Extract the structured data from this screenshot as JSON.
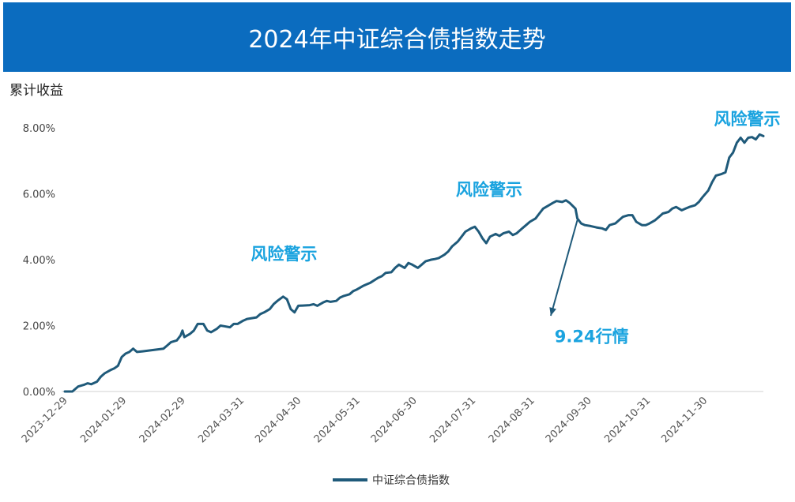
{
  "chart_data": {
    "type": "line",
    "title": "2024年中证综合债指数走势",
    "ylabel": "累计收益",
    "xlabel": "",
    "ylim": [
      0,
      8.6
    ],
    "y_ticks": [
      "0.00%",
      "2.00%",
      "4.00%",
      "6.00%",
      "8.00%"
    ],
    "y_tick_values": [
      0,
      2,
      4,
      6,
      8
    ],
    "x_ticks": [
      "2023-12-29",
      "2024-01-29",
      "2024-02-29",
      "2024-03-31",
      "2024-04-30",
      "2024-05-31",
      "2024-06-30",
      "2024-07-31",
      "2024-08-31",
      "2024-09-30",
      "2024-10-31",
      "2024-11-30"
    ],
    "series": [
      {
        "name": "中证综合债指数",
        "color": "#1f5a7a",
        "points": [
          [
            "2023-12-29",
            0.0
          ],
          [
            "2024-01-02",
            0.0
          ],
          [
            "2024-01-05",
            0.15
          ],
          [
            "2024-01-08",
            0.2
          ],
          [
            "2024-01-10",
            0.25
          ],
          [
            "2024-01-12",
            0.22
          ],
          [
            "2024-01-15",
            0.3
          ],
          [
            "2024-01-17",
            0.45
          ],
          [
            "2024-01-19",
            0.55
          ],
          [
            "2024-01-22",
            0.65
          ],
          [
            "2024-01-24",
            0.7
          ],
          [
            "2024-01-26",
            0.78
          ],
          [
            "2024-01-28",
            1.05
          ],
          [
            "2024-01-30",
            1.15
          ],
          [
            "2024-02-01",
            1.2
          ],
          [
            "2024-02-03",
            1.3
          ],
          [
            "2024-02-05",
            1.2
          ],
          [
            "2024-02-08",
            1.22
          ],
          [
            "2024-02-19",
            1.3
          ],
          [
            "2024-02-21",
            1.4
          ],
          [
            "2024-02-23",
            1.5
          ],
          [
            "2024-02-26",
            1.55
          ],
          [
            "2024-02-28",
            1.7
          ],
          [
            "2024-02-29",
            1.85
          ],
          [
            "2024-03-01",
            1.65
          ],
          [
            "2024-03-04",
            1.75
          ],
          [
            "2024-03-06",
            1.85
          ],
          [
            "2024-03-08",
            2.05
          ],
          [
            "2024-03-11",
            2.05
          ],
          [
            "2024-03-13",
            1.85
          ],
          [
            "2024-03-15",
            1.8
          ],
          [
            "2024-03-18",
            1.9
          ],
          [
            "2024-03-20",
            2.0
          ],
          [
            "2024-03-22",
            1.98
          ],
          [
            "2024-03-25",
            1.95
          ],
          [
            "2024-03-27",
            2.05
          ],
          [
            "2024-03-29",
            2.05
          ],
          [
            "2024-04-01",
            2.15
          ],
          [
            "2024-04-03",
            2.2
          ],
          [
            "2024-04-08",
            2.25
          ],
          [
            "2024-04-10",
            2.35
          ],
          [
            "2024-04-12",
            2.4
          ],
          [
            "2024-04-15",
            2.5
          ],
          [
            "2024-04-17",
            2.65
          ],
          [
            "2024-04-19",
            2.75
          ],
          [
            "2024-04-22",
            2.88
          ],
          [
            "2024-04-24",
            2.8
          ],
          [
            "2024-04-26",
            2.5
          ],
          [
            "2024-04-28",
            2.4
          ],
          [
            "2024-04-30",
            2.6
          ],
          [
            "2024-05-06",
            2.62
          ],
          [
            "2024-05-08",
            2.65
          ],
          [
            "2024-05-10",
            2.6
          ],
          [
            "2024-05-13",
            2.7
          ],
          [
            "2024-05-15",
            2.75
          ],
          [
            "2024-05-17",
            2.72
          ],
          [
            "2024-05-20",
            2.75
          ],
          [
            "2024-05-22",
            2.85
          ],
          [
            "2024-05-24",
            2.9
          ],
          [
            "2024-05-27",
            2.95
          ],
          [
            "2024-05-29",
            3.05
          ],
          [
            "2024-05-31",
            3.1
          ],
          [
            "2024-06-03",
            3.2
          ],
          [
            "2024-06-05",
            3.25
          ],
          [
            "2024-06-07",
            3.3
          ],
          [
            "2024-06-11",
            3.45
          ],
          [
            "2024-06-13",
            3.5
          ],
          [
            "2024-06-15",
            3.6
          ],
          [
            "2024-06-18",
            3.62
          ],
          [
            "2024-06-20",
            3.75
          ],
          [
            "2024-06-22",
            3.85
          ],
          [
            "2024-06-25",
            3.75
          ],
          [
            "2024-06-27",
            3.9
          ],
          [
            "2024-06-29",
            3.85
          ],
          [
            "2024-07-02",
            3.75
          ],
          [
            "2024-07-04",
            3.85
          ],
          [
            "2024-07-06",
            3.95
          ],
          [
            "2024-07-09",
            4.0
          ],
          [
            "2024-07-11",
            4.02
          ],
          [
            "2024-07-13",
            4.05
          ],
          [
            "2024-07-16",
            4.15
          ],
          [
            "2024-07-18",
            4.25
          ],
          [
            "2024-07-20",
            4.4
          ],
          [
            "2024-07-23",
            4.55
          ],
          [
            "2024-07-25",
            4.7
          ],
          [
            "2024-07-27",
            4.85
          ],
          [
            "2024-07-30",
            4.95
          ],
          [
            "2024-08-01",
            5.0
          ],
          [
            "2024-08-03",
            4.85
          ],
          [
            "2024-08-05",
            4.65
          ],
          [
            "2024-08-07",
            4.5
          ],
          [
            "2024-08-09",
            4.7
          ],
          [
            "2024-08-12",
            4.78
          ],
          [
            "2024-08-14",
            4.72
          ],
          [
            "2024-08-16",
            4.8
          ],
          [
            "2024-08-19",
            4.85
          ],
          [
            "2024-08-21",
            4.75
          ],
          [
            "2024-08-23",
            4.8
          ],
          [
            "2024-08-26",
            4.95
          ],
          [
            "2024-08-28",
            5.05
          ],
          [
            "2024-08-30",
            5.15
          ],
          [
            "2024-09-02",
            5.25
          ],
          [
            "2024-09-04",
            5.4
          ],
          [
            "2024-09-06",
            5.55
          ],
          [
            "2024-09-09",
            5.65
          ],
          [
            "2024-09-11",
            5.72
          ],
          [
            "2024-09-13",
            5.78
          ],
          [
            "2024-09-16",
            5.75
          ],
          [
            "2024-09-18",
            5.8
          ],
          [
            "2024-09-20",
            5.72
          ],
          [
            "2024-09-23",
            5.55
          ],
          [
            "2024-09-24",
            5.25
          ],
          [
            "2024-09-26",
            5.1
          ],
          [
            "2024-09-28",
            5.05
          ],
          [
            "2024-10-01",
            5.02
          ],
          [
            "2024-10-04",
            4.98
          ],
          [
            "2024-10-07",
            4.95
          ],
          [
            "2024-10-09",
            4.9
          ],
          [
            "2024-10-11",
            5.05
          ],
          [
            "2024-10-14",
            5.1
          ],
          [
            "2024-10-16",
            5.2
          ],
          [
            "2024-10-18",
            5.3
          ],
          [
            "2024-10-21",
            5.35
          ],
          [
            "2024-10-23",
            5.35
          ],
          [
            "2024-10-25",
            5.15
          ],
          [
            "2024-10-28",
            5.05
          ],
          [
            "2024-10-30",
            5.05
          ],
          [
            "2024-11-01",
            5.1
          ],
          [
            "2024-11-04",
            5.2
          ],
          [
            "2024-11-06",
            5.3
          ],
          [
            "2024-11-08",
            5.4
          ],
          [
            "2024-11-11",
            5.45
          ],
          [
            "2024-11-13",
            5.55
          ],
          [
            "2024-11-15",
            5.6
          ],
          [
            "2024-11-18",
            5.5
          ],
          [
            "2024-11-20",
            5.55
          ],
          [
            "2024-11-22",
            5.6
          ],
          [
            "2024-11-25",
            5.65
          ],
          [
            "2024-11-27",
            5.75
          ],
          [
            "2024-11-29",
            5.9
          ],
          [
            "2024-12-02",
            6.1
          ],
          [
            "2024-12-04",
            6.35
          ],
          [
            "2024-12-06",
            6.55
          ],
          [
            "2024-12-09",
            6.6
          ],
          [
            "2024-12-11",
            6.65
          ],
          [
            "2024-12-13",
            7.1
          ],
          [
            "2024-12-15",
            7.25
          ],
          [
            "2024-12-17",
            7.55
          ],
          [
            "2024-12-19",
            7.7
          ],
          [
            "2024-12-21",
            7.55
          ],
          [
            "2024-12-23",
            7.7
          ],
          [
            "2024-12-25",
            7.72
          ],
          [
            "2024-12-27",
            7.65
          ],
          [
            "2024-12-29",
            7.8
          ],
          [
            "2024-12-31",
            7.75
          ]
        ]
      }
    ],
    "annotations": [
      {
        "text": "风险警示",
        "x": "2024-04-05",
        "y": 4.0
      },
      {
        "text": "风险警示",
        "x": "2024-07-22",
        "y": 5.95
      },
      {
        "text": "风险警示",
        "x": "2024-12-05",
        "y": 8.1
      },
      {
        "text": "9.24行情",
        "x": "2024-09-12",
        "y": 1.5
      }
    ],
    "arrow": {
      "from": [
        "2024-09-24",
        5.2
      ],
      "to": [
        "2024-09-10",
        2.3
      ]
    },
    "legend": "bottom",
    "grid": false
  }
}
